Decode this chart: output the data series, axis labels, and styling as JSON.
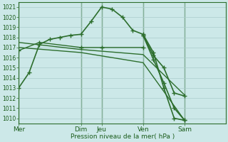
{
  "background_color": "#cce8e8",
  "grid_color": "#aacccc",
  "line_color": "#2d6e2d",
  "marker_color": "#2d6e2d",
  "ylabel_text": "Pression niveau de la mer( hPa )",
  "ylim": [
    1009.5,
    1021.5
  ],
  "yticks": [
    1010,
    1011,
    1012,
    1013,
    1014,
    1015,
    1016,
    1017,
    1018,
    1019,
    1020,
    1021
  ],
  "xlim": [
    0,
    120
  ],
  "xtick_labels": [
    "Mer",
    "Dim",
    "Jeu",
    "Ven",
    "Sam"
  ],
  "xtick_positions": [
    0,
    36,
    48,
    72,
    96
  ],
  "vlines": [
    0,
    36,
    48,
    72,
    96
  ],
  "series": [
    {
      "x": [
        0,
        6,
        12,
        18,
        24,
        30,
        36,
        42,
        48,
        54,
        60,
        66,
        72,
        78,
        84,
        90,
        96
      ],
      "y": [
        1013.0,
        1014.5,
        1017.3,
        1017.8,
        1018.0,
        1018.2,
        1018.3,
        1019.6,
        1021.0,
        1020.8,
        1020.0,
        1018.7,
        1018.3,
        1016.5,
        1013.0,
        1010.0,
        1009.8
      ],
      "has_markers": true,
      "linewidth": 1.2,
      "markersize": 4
    },
    {
      "x": [
        0,
        12,
        36,
        48,
        72
      ],
      "y": [
        1016.7,
        1017.5,
        1017.0,
        1017.0,
        1017.0
      ],
      "has_markers": true,
      "linewidth": 1.0,
      "markersize": 4
    },
    {
      "x": [
        0,
        36,
        72,
        96
      ],
      "y": [
        1017.5,
        1016.8,
        1016.3,
        1012.3
      ],
      "has_markers": false,
      "linewidth": 1.0,
      "markersize": 0
    },
    {
      "x": [
        0,
        36,
        72,
        96
      ],
      "y": [
        1017.0,
        1016.5,
        1015.5,
        1009.8
      ],
      "has_markers": false,
      "linewidth": 1.0,
      "markersize": 0
    },
    {
      "x": [
        72,
        78,
        84,
        90,
        96
      ],
      "y": [
        1018.2,
        1015.8,
        1013.5,
        1011.0,
        1009.8
      ],
      "has_markers": true,
      "linewidth": 1.2,
      "markersize": 4
    },
    {
      "x": [
        72,
        78,
        84,
        90,
        96
      ],
      "y": [
        1018.2,
        1016.2,
        1015.0,
        1012.5,
        1012.2
      ],
      "has_markers": true,
      "linewidth": 1.2,
      "markersize": 4
    }
  ]
}
